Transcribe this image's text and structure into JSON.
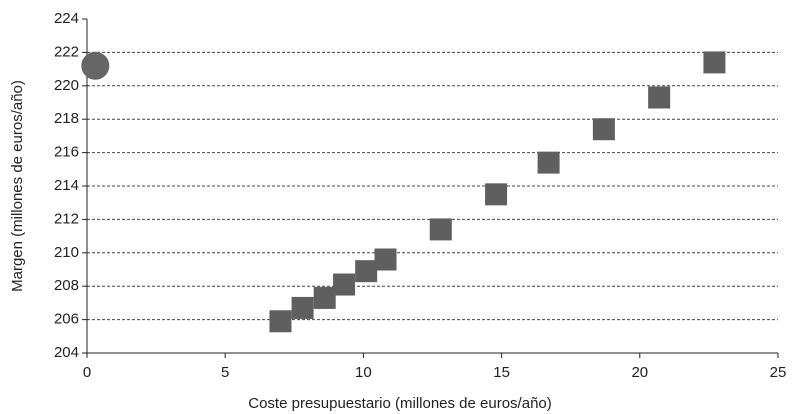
{
  "chart_data": {
    "type": "scatter",
    "x_label": "Coste presupuestario (millones de euros/año)",
    "y_label": "Margen (millones de euros/año)",
    "xlim": [
      0,
      25
    ],
    "xticks": [
      0,
      5,
      10,
      15,
      20,
      25
    ],
    "ylim": [
      204,
      224
    ],
    "yticks": [
      204,
      206,
      208,
      210,
      212,
      214,
      216,
      218,
      220,
      222,
      224
    ],
    "grid": true,
    "series": [
      {
        "color": "#666666",
        "marker": "circle",
        "x": [
          0.3
        ],
        "values": [
          221.2
        ]
      },
      {
        "color": "#5f5f5f",
        "marker": "square",
        "x": [
          7.0,
          7.8,
          8.6,
          9.3,
          10.1,
          10.8,
          12.8,
          14.8,
          16.7,
          18.7,
          20.7,
          22.7
        ],
        "values": [
          205.9,
          206.7,
          207.3,
          208.1,
          208.9,
          209.6,
          211.4,
          213.5,
          215.4,
          217.4,
          219.3,
          221.4
        ]
      }
    ]
  }
}
